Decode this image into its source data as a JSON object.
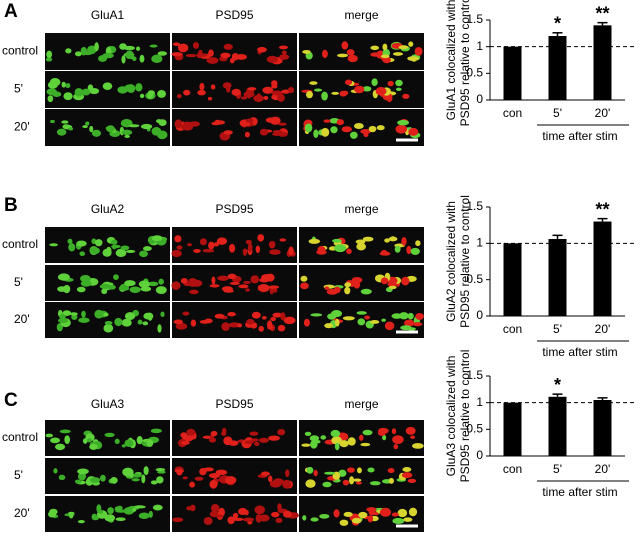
{
  "panels": [
    {
      "letter": "A",
      "columns": [
        "GluA1",
        "PSD95",
        "merge"
      ],
      "rows": [
        "control",
        "5'",
        "20'"
      ]
    },
    {
      "letter": "B",
      "columns": [
        "GluA2",
        "PSD95",
        "merge"
      ],
      "rows": [
        "control",
        "5'",
        "20'"
      ]
    },
    {
      "letter": "C",
      "columns": [
        "GluA3",
        "PSD95",
        "merge"
      ],
      "rows": [
        "control",
        "5'",
        "20'"
      ]
    }
  ],
  "chart_data": [
    {
      "type": "bar",
      "ylabel": [
        "GluA1 colocalized with",
        "PSD95 relative to control"
      ],
      "xlabel": "time after stim",
      "categories": [
        "con",
        "5'",
        "20'"
      ],
      "values": [
        1,
        1.2,
        1.4
      ],
      "errors": [
        null,
        0.06,
        0.05
      ],
      "annotations": [
        null,
        "*",
        "**"
      ],
      "color": "#000000",
      "ylim": [
        0,
        1.5
      ],
      "yticks": [
        0,
        0.5,
        1,
        1.5
      ],
      "reference_line": 1
    },
    {
      "type": "bar",
      "ylabel": [
        "GluA2 colocalized with",
        "PSD95 relative to control"
      ],
      "xlabel": "time after stim",
      "categories": [
        "con",
        "5'",
        "20'"
      ],
      "values": [
        1,
        1.06,
        1.3
      ],
      "errors": [
        null,
        0.05,
        0.04
      ],
      "annotations": [
        null,
        null,
        "**"
      ],
      "color": "#000000",
      "ylim": [
        0,
        1.5
      ],
      "yticks": [
        0,
        0.5,
        1,
        1.5
      ],
      "reference_line": 1
    },
    {
      "type": "bar",
      "ylabel": [
        "GluA3 colocalized with",
        "PSD95 relative to control"
      ],
      "xlabel": "time after stim",
      "categories": [
        "con",
        "5'",
        "20'"
      ],
      "values": [
        1,
        1.11,
        1.05
      ],
      "errors": [
        null,
        0.05,
        0.04
      ],
      "annotations": [
        null,
        "*",
        null
      ],
      "color": "#000000",
      "ylim": [
        0,
        1.5
      ],
      "yticks": [
        0,
        0.5,
        1,
        1.5
      ],
      "reference_line": 1
    }
  ]
}
